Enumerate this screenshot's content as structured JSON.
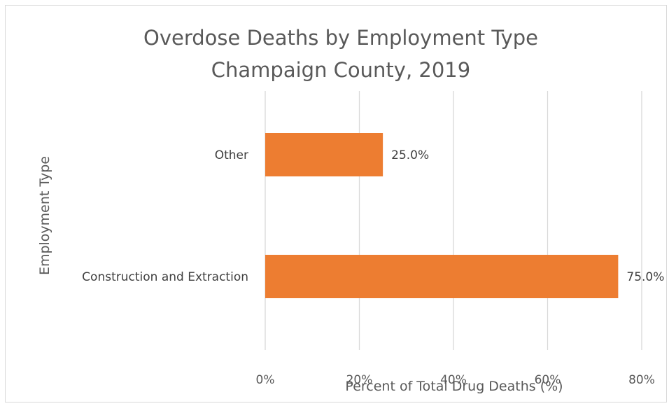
{
  "chart_data": {
    "type": "bar",
    "orientation": "horizontal",
    "title_lines": [
      "Overdose Deaths by Employment Type",
      "Champaign County, 2019"
    ],
    "xlabel": "Percent of Total Drug Deaths (%)",
    "ylabel": "Employment Type",
    "categories": [
      "Other",
      "Construction and Extraction"
    ],
    "values": [
      25.0,
      75.0
    ],
    "data_labels": [
      "25.0%",
      "75.0%"
    ],
    "xlim": [
      0,
      80
    ],
    "x_ticks": [
      0,
      20,
      40,
      60,
      80
    ],
    "x_tick_labels": [
      "0%",
      "20%",
      "40%",
      "60%",
      "80%"
    ],
    "grid": true,
    "legend": "none",
    "bar_color": "#ED7D31"
  }
}
